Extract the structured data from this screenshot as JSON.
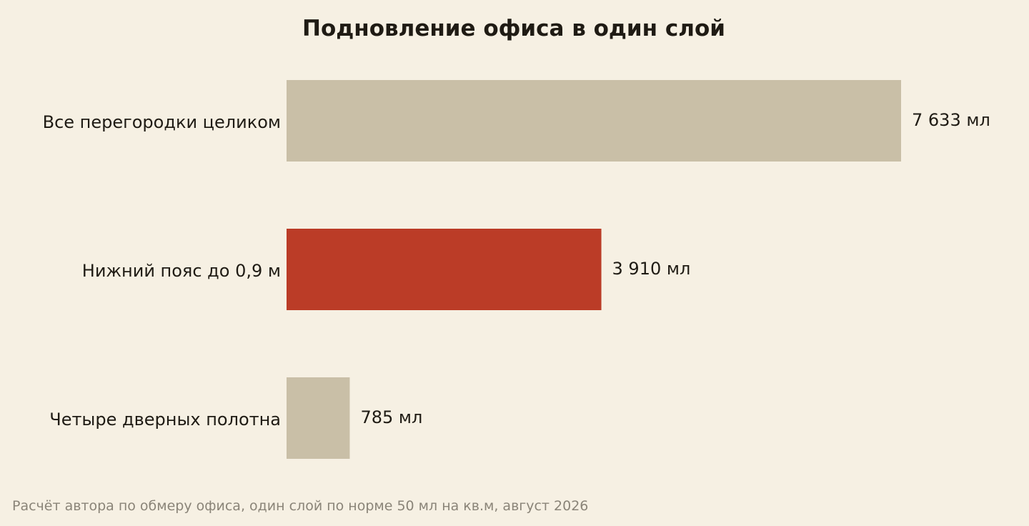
{
  "chart_data": {
    "type": "bar",
    "orientation": "horizontal",
    "title": "Подновление офиса в один слой",
    "categories": [
      "Все перегородки целиком",
      "Нижний пояс до 0,9 м",
      "Четыре дверных полотна"
    ],
    "values": [
      7633,
      3910,
      785
    ],
    "value_labels": [
      "7 633 мл",
      "3 910 мл",
      "785 мл"
    ],
    "highlight_index": 1,
    "colors": {
      "default": "#c9bfa7",
      "highlight": "#bb3c27",
      "background": "#f6f0e3"
    },
    "xlim": [
      0,
      7633
    ],
    "grid": false,
    "source": "Расчёт автора по обмеру офиса, один слой по норме 50 мл на кв.м, август 2026"
  }
}
